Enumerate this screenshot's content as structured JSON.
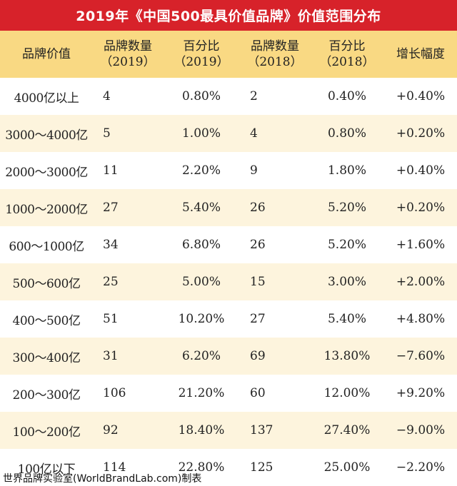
{
  "title": "2019年《中国500最具价值品牌》价值范围分布",
  "header": {
    "col0": "品牌价值",
    "col1": "品牌数量",
    "col1_sub": "（2019）",
    "col2": "百分比",
    "col2_sub": "（2019）",
    "col3": "品牌数量",
    "col3_sub": "（2018）",
    "col4": "百分比",
    "col4_sub": "（2018）",
    "col5": "增长幅度"
  },
  "rows": [
    {
      "range": "4000亿以上",
      "count_2019": "4",
      "pct_2019": "0.80%",
      "count_2018": "2",
      "pct_2018": "0.40%",
      "growth": "+0.40%"
    },
    {
      "range": "3000～4000亿",
      "count_2019": "5",
      "pct_2019": "1.00%",
      "count_2018": "4",
      "pct_2018": "0.80%",
      "growth": "+0.20%"
    },
    {
      "range": "2000～3000亿",
      "count_2019": "11",
      "pct_2019": "2.20%",
      "count_2018": "9",
      "pct_2018": "1.80%",
      "growth": "+0.40%"
    },
    {
      "range": "1000～2000亿",
      "count_2019": "27",
      "pct_2019": "5.40%",
      "count_2018": "26",
      "pct_2018": "5.20%",
      "growth": "+0.20%"
    },
    {
      "range": "600～1000亿",
      "count_2019": "34",
      "pct_2019": "6.80%",
      "count_2018": "26",
      "pct_2018": "5.20%",
      "growth": "+1.60%"
    },
    {
      "range": "500～600亿",
      "count_2019": "25",
      "pct_2019": "5.00%",
      "count_2018": "15",
      "pct_2018": "3.00%",
      "growth": "+2.00%"
    },
    {
      "range": "400～500亿",
      "count_2019": "51",
      "pct_2019": "10.20%",
      "count_2018": "27",
      "pct_2018": "5.40%",
      "growth": "+4.80%"
    },
    {
      "range": "300～400亿",
      "count_2019": "31",
      "pct_2019": "6.20%",
      "count_2018": "69",
      "pct_2018": "13.80%",
      "growth": "−7.60%"
    },
    {
      "range": "200～300亿",
      "count_2019": "106",
      "pct_2019": "21.20%",
      "count_2018": "60",
      "pct_2018": "12.00%",
      "growth": "+9.20%"
    },
    {
      "range": "100～200亿",
      "count_2019": "92",
      "pct_2019": "18.40%",
      "count_2018": "137",
      "pct_2018": "27.40%",
      "growth": "−9.00%"
    },
    {
      "range": "100亿以下",
      "count_2019": "114",
      "pct_2019": "22.80%",
      "count_2018": "125",
      "pct_2018": "25.00%",
      "growth": "−2.20%"
    }
  ],
  "footer": "世界品牌实验室(WorldBrandLab.com)制表",
  "colors": {
    "title_bg": "#d7222a",
    "header_bg": "#f9d983",
    "row_alt_bg": "#fdf4dd"
  }
}
